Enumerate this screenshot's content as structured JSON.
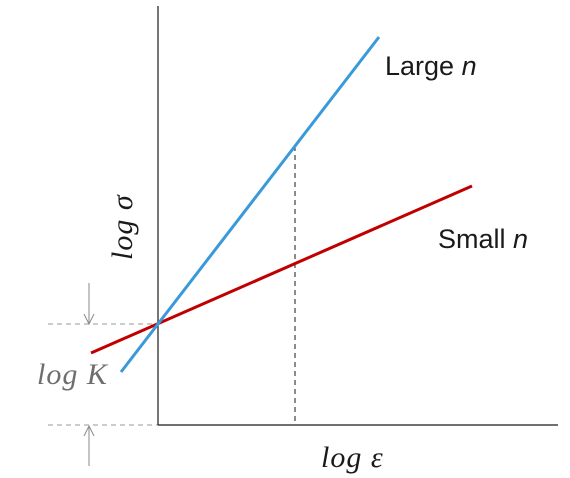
{
  "axes": {
    "x_label": "log ε",
    "y_label": "log σ",
    "intercept_label": "log K",
    "axis_color": "#1a1a1a",
    "guide_color": "#9a9a9a"
  },
  "lines": [
    {
      "label_main": "Large ",
      "label_var": "n",
      "color": "#3a9ad9"
    },
    {
      "label_main": "Small ",
      "label_var": "n",
      "color": "#c00000"
    }
  ]
}
